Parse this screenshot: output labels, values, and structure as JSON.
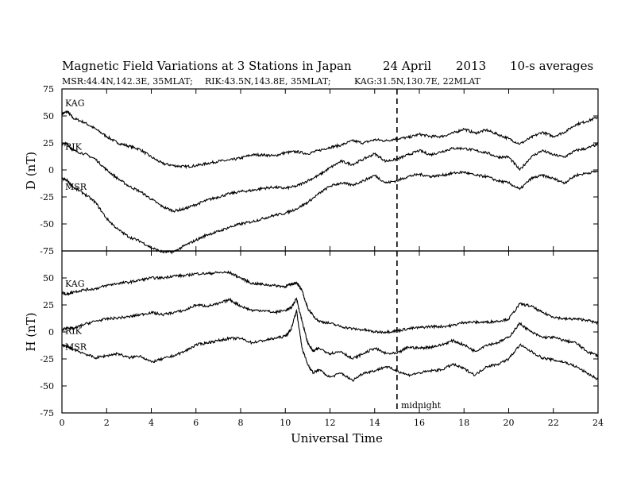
{
  "header": {
    "title": "Magnetic Field Variations at 3 Stations in Japan",
    "date": "24  April",
    "year": "2013",
    "averaging": "10-s averages",
    "stations": [
      "MSR:44.4N,142.3E, 35MLAT;",
      "RIK:43.5N,143.8E, 35MLAT;",
      "KAG:31.5N,130.7E, 22MLAT"
    ]
  },
  "chart_data": [
    {
      "type": "line",
      "panel": "D",
      "ylabel": "D (nT)",
      "ylim": [
        -75,
        75
      ],
      "yticks": [
        -75,
        -50,
        -25,
        0,
        25,
        50,
        75
      ],
      "xlim": [
        0,
        24
      ],
      "xticks": [
        0,
        2,
        4,
        6,
        8,
        10,
        12,
        14,
        16,
        18,
        20,
        22,
        24
      ],
      "marker": {
        "x": 15,
        "style": "dashed"
      },
      "series": [
        {
          "name": "KAG",
          "x": [
            0,
            0.25,
            0.5,
            1,
            1.5,
            2,
            2.5,
            3,
            3.5,
            4,
            4.5,
            5,
            5.5,
            6,
            6.5,
            7,
            7.5,
            8,
            8.5,
            9,
            9.5,
            10,
            10.5,
            11,
            11.5,
            12,
            12.5,
            13,
            13.5,
            14,
            14.5,
            15,
            15.5,
            16,
            16.5,
            17,
            17.5,
            18,
            18.5,
            19,
            19.5,
            20,
            20.5,
            21,
            21.5,
            22,
            22.5,
            23,
            23.5,
            24
          ],
          "y": [
            52,
            54,
            48,
            44,
            38,
            31,
            25,
            22,
            19,
            12,
            6,
            4,
            3,
            4,
            6,
            8,
            9,
            11,
            14,
            14,
            13,
            16,
            17,
            15,
            18,
            21,
            23,
            27,
            25,
            28,
            27,
            29,
            30,
            33,
            31,
            31,
            34,
            38,
            34,
            37,
            33,
            29,
            24,
            30,
            35,
            31,
            35,
            42,
            45,
            49
          ]
        },
        {
          "name": "RIK",
          "x": [
            0,
            0.25,
            0.5,
            1,
            1.5,
            2,
            2.5,
            3,
            3.5,
            4,
            4.5,
            5,
            5.5,
            6,
            6.5,
            7,
            7.5,
            8,
            8.5,
            9,
            9.5,
            10,
            10.5,
            11,
            11.5,
            12,
            12.5,
            13,
            13.5,
            14,
            14.5,
            15,
            15.5,
            16,
            16.5,
            17,
            17.5,
            18,
            18.5,
            19,
            19.5,
            20,
            20.5,
            21,
            21.5,
            22,
            22.5,
            23,
            23.5,
            24
          ],
          "y": [
            24,
            24,
            18,
            15,
            10,
            0,
            -8,
            -15,
            -20,
            -27,
            -34,
            -38,
            -36,
            -32,
            -28,
            -25,
            -22,
            -20,
            -19,
            -17,
            -16,
            -17,
            -15,
            -10,
            -5,
            2,
            8,
            5,
            10,
            15,
            8,
            10,
            14,
            18,
            14,
            17,
            20,
            20,
            18,
            16,
            12,
            12,
            0,
            12,
            18,
            14,
            12,
            18,
            20,
            24
          ]
        },
        {
          "name": "MSR",
          "x": [
            0,
            0.25,
            0.5,
            1,
            1.5,
            2,
            2.5,
            3,
            3.5,
            4,
            4.5,
            5,
            5.5,
            6,
            6.5,
            7,
            7.5,
            8,
            8.5,
            9,
            9.5,
            10,
            10.5,
            11,
            11.5,
            12,
            12.5,
            13,
            13.5,
            14,
            14.5,
            15,
            15.5,
            16,
            16.5,
            17,
            17.5,
            18,
            18.5,
            19,
            19.5,
            20,
            20.5,
            21,
            21.5,
            22,
            22.5,
            23,
            23.5,
            24
          ],
          "y": [
            -8,
            -10,
            -16,
            -22,
            -30,
            -45,
            -55,
            -62,
            -66,
            -72,
            -76,
            -76,
            -70,
            -65,
            -60,
            -57,
            -53,
            -50,
            -48,
            -45,
            -42,
            -40,
            -36,
            -30,
            -22,
            -15,
            -12,
            -14,
            -10,
            -5,
            -12,
            -10,
            -6,
            -4,
            -6,
            -5,
            -3,
            -2,
            -5,
            -6,
            -10,
            -12,
            -18,
            -8,
            -5,
            -8,
            -12,
            -5,
            -3,
            -1
          ]
        }
      ]
    },
    {
      "type": "line",
      "panel": "H",
      "ylabel": "H (nT)",
      "ylim": [
        -75,
        75
      ],
      "yticks": [
        -75,
        -50,
        -25,
        0,
        25,
        50
      ],
      "xlim": [
        0,
        24
      ],
      "xticks": [
        0,
        2,
        4,
        6,
        8,
        10,
        12,
        14,
        16,
        18,
        20,
        22,
        24
      ],
      "xlabel": "Universal Time",
      "marker": {
        "x": 15,
        "style": "dashed",
        "label": "midnight"
      },
      "series": [
        {
          "name": "KAG",
          "x": [
            0,
            0.25,
            0.5,
            1,
            1.5,
            2,
            2.5,
            3,
            3.5,
            4,
            4.5,
            5,
            5.5,
            6,
            6.5,
            7,
            7.5,
            8,
            8.5,
            9,
            9.5,
            10,
            10.25,
            10.5,
            10.75,
            11,
            11.25,
            11.5,
            12,
            12.5,
            13,
            13.5,
            14,
            14.5,
            15,
            15.5,
            16,
            16.5,
            17,
            17.5,
            18,
            18.5,
            19,
            19.5,
            20,
            20.5,
            21,
            21.5,
            22,
            22.5,
            23,
            23.5,
            24
          ],
          "y": [
            36,
            35,
            37,
            39,
            40,
            43,
            45,
            46,
            48,
            50,
            50,
            52,
            52,
            54,
            54,
            55,
            55,
            50,
            45,
            44,
            43,
            42,
            44,
            46,
            38,
            22,
            15,
            10,
            8,
            5,
            3,
            2,
            0,
            0,
            1,
            3,
            4,
            5,
            5,
            6,
            9,
            9,
            9,
            10,
            12,
            26,
            24,
            18,
            14,
            12,
            12,
            11,
            8
          ]
        },
        {
          "name": "RIK",
          "x": [
            0,
            0.25,
            0.5,
            1,
            1.5,
            2,
            2.5,
            3,
            3.5,
            4,
            4.5,
            5,
            5.5,
            6,
            6.5,
            7,
            7.5,
            8,
            8.5,
            9,
            9.5,
            10,
            10.25,
            10.5,
            10.75,
            11,
            11.25,
            11.5,
            12,
            12.5,
            13,
            13.5,
            14,
            14.5,
            15,
            15.5,
            16,
            16.5,
            17,
            17.5,
            18,
            18.5,
            19,
            19.5,
            20,
            20.5,
            21,
            21.5,
            22,
            22.5,
            23,
            23.5,
            24
          ],
          "y": [
            2,
            4,
            3,
            7,
            10,
            12,
            13,
            14,
            16,
            18,
            16,
            18,
            20,
            25,
            24,
            26,
            30,
            24,
            20,
            20,
            18,
            20,
            22,
            31,
            10,
            -10,
            -18,
            -15,
            -20,
            -18,
            -25,
            -20,
            -15,
            -20,
            -20,
            -14,
            -15,
            -14,
            -12,
            -8,
            -12,
            -18,
            -12,
            -10,
            -5,
            8,
            0,
            -5,
            -5,
            -8,
            -10,
            -18,
            -22
          ]
        },
        {
          "name": "MSR",
          "x": [
            0,
            0.25,
            0.5,
            1,
            1.5,
            2,
            2.5,
            3,
            3.5,
            4,
            4.5,
            5,
            5.5,
            6,
            6.5,
            7,
            7.5,
            8,
            8.5,
            9,
            9.5,
            10,
            10.25,
            10.5,
            10.75,
            11,
            11.25,
            11.5,
            12,
            12.5,
            13,
            13.5,
            14,
            14.5,
            15,
            15.5,
            16,
            16.5,
            17,
            17.5,
            18,
            18.5,
            19,
            19.5,
            20,
            20.5,
            21,
            21.5,
            22,
            22.5,
            23,
            23.5,
            24
          ],
          "y": [
            -12,
            -14,
            -16,
            -20,
            -24,
            -22,
            -20,
            -24,
            -22,
            -28,
            -25,
            -22,
            -18,
            -12,
            -10,
            -8,
            -6,
            -6,
            -10,
            -8,
            -6,
            -4,
            2,
            20,
            -15,
            -30,
            -38,
            -35,
            -42,
            -38,
            -45,
            -38,
            -36,
            -32,
            -36,
            -40,
            -38,
            -36,
            -35,
            -30,
            -34,
            -40,
            -32,
            -30,
            -25,
            -12,
            -18,
            -24,
            -26,
            -28,
            -32,
            -38,
            -44
          ]
        }
      ]
    }
  ]
}
